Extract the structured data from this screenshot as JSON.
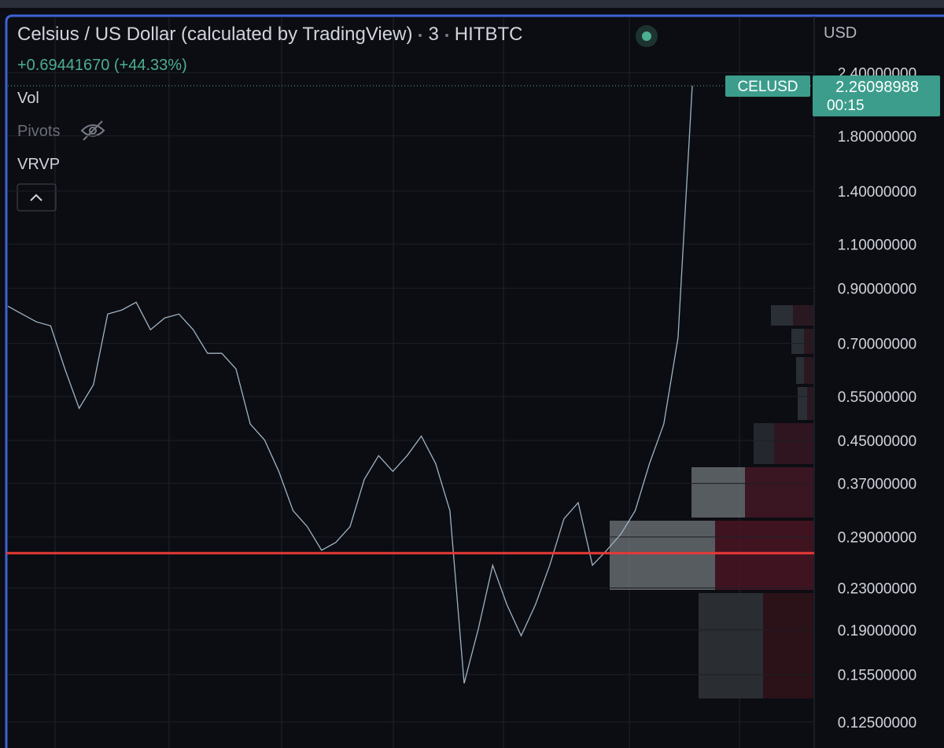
{
  "header": {
    "symbol_title": "Celsius / US Dollar (calculated by TradingView)",
    "interval": "3",
    "exchange": "HITBTC",
    "change": "+0.69441670 (+44.33%)"
  },
  "indicators": [
    "Vol",
    "Pivots",
    "VRVP"
  ],
  "price_tag": {
    "symbol": "CELUSD",
    "countdown": "00:15"
  },
  "chart_data": {
    "type": "line",
    "axis_label": "USD",
    "log_scale": true,
    "grid": true,
    "categories": [
      null,
      null,
      null,
      null,
      null,
      null,
      null,
      null,
      null,
      null,
      null,
      null,
      null,
      null,
      null,
      null,
      null,
      null,
      null,
      null,
      null,
      null,
      null,
      null,
      null,
      null,
      null,
      null,
      null,
      null,
      null,
      null,
      null,
      null,
      null,
      null,
      null,
      null,
      null,
      null,
      null,
      null,
      null,
      null,
      null,
      null,
      null,
      null,
      null
    ],
    "series": [
      {
        "name": "CELUSD",
        "color": "#9fb3c2",
        "values": [
          0.829,
          0.8,
          0.772,
          0.758,
          0.623,
          0.521,
          0.58,
          0.8,
          0.815,
          0.844,
          0.745,
          0.786,
          0.8,
          0.745,
          0.669,
          0.669,
          0.623,
          0.485,
          0.451,
          0.391,
          0.327,
          0.304,
          0.273,
          0.283,
          0.304,
          0.377,
          0.42,
          0.391,
          0.42,
          0.459,
          0.405,
          0.327,
          0.149,
          0.191,
          0.255,
          0.213,
          0.185,
          0.213,
          0.255,
          0.315,
          0.339,
          0.255,
          0.273,
          0.294,
          0.327,
          0.405,
          0.485,
          0.718,
          2.26098988
        ]
      }
    ],
    "last_price": 2.26098988,
    "horizontal_line": {
      "value": 0.2695,
      "color": "#e53935"
    },
    "ylim": [
      0.111,
      3.11
    ],
    "yticks": [
      {
        "value": 2.4,
        "label": "2.40000000"
      },
      {
        "value": 1.8,
        "label": "1.80000000"
      },
      {
        "value": 1.4,
        "label": "1.40000000"
      },
      {
        "value": 1.1,
        "label": "1.10000000"
      },
      {
        "value": 0.9,
        "label": "0.90000000"
      },
      {
        "value": 0.7,
        "label": "0.70000000"
      },
      {
        "value": 0.55,
        "label": "0.55000000"
      },
      {
        "value": 0.45,
        "label": "0.45000000"
      },
      {
        "value": 0.37,
        "label": "0.37000000"
      },
      {
        "value": 0.29,
        "label": "0.29000000"
      },
      {
        "value": 0.23,
        "label": "0.23000000"
      },
      {
        "value": 0.19,
        "label": "0.19000000"
      },
      {
        "value": 0.155,
        "label": "0.15500000"
      },
      {
        "value": 0.125,
        "label": "0.12500000"
      }
    ]
  }
}
